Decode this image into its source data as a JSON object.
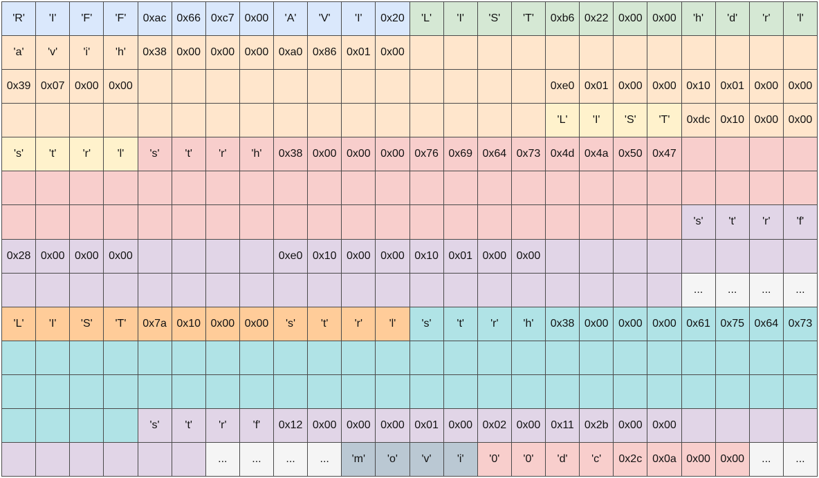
{
  "colors": {
    "b": "#dae8fc",
    "g": "#d5e8d4",
    "o": "#ffe6cc",
    "y": "#fff2cc",
    "r": "#f8cecc",
    "p": "#e1d5e7",
    "w": "#f5f5f5",
    "d": "#ffcc99",
    "t": "#b0e3e6",
    "s": "#bac8d3"
  },
  "rows": [
    {
      "fills": [
        "b",
        "b",
        "b",
        "b",
        "b",
        "b",
        "b",
        "b",
        "b",
        "b",
        "b",
        "b",
        "g",
        "g",
        "g",
        "g",
        "g",
        "g",
        "g",
        "g",
        "g",
        "g",
        "g",
        "g"
      ],
      "values": [
        "'R'",
        "'I'",
        "'F'",
        "'F'",
        "0xac",
        "0x66",
        "0xc7",
        "0x00",
        "'A'",
        "'V'",
        "'I'",
        "0x20",
        "'L'",
        "'I'",
        "'S'",
        "'T'",
        "0xb6",
        "0x22",
        "0x00",
        "0x00",
        "'h'",
        "'d'",
        "'r'",
        "'l'"
      ]
    },
    {
      "fills": [
        "o",
        "o",
        "o",
        "o",
        "o",
        "o",
        "o",
        "o",
        "o",
        "o",
        "o",
        "o",
        "o",
        "o",
        "o",
        "o",
        "o",
        "o",
        "o",
        "o",
        "o",
        "o",
        "o",
        "o"
      ],
      "values": [
        "'a'",
        "'v'",
        "'i'",
        "'h'",
        "0x38",
        "0x00",
        "0x00",
        "0x00",
        "0xa0",
        "0x86",
        "0x01",
        "0x00",
        "",
        "",
        "",
        "",
        "",
        "",
        "",
        "",
        "",
        "",
        "",
        ""
      ]
    },
    {
      "fills": [
        "o",
        "o",
        "o",
        "o",
        "o",
        "o",
        "o",
        "o",
        "o",
        "o",
        "o",
        "o",
        "o",
        "o",
        "o",
        "o",
        "o",
        "o",
        "o",
        "o",
        "o",
        "o",
        "o",
        "o"
      ],
      "values": [
        "0x39",
        "0x07",
        "0x00",
        "0x00",
        "",
        "",
        "",
        "",
        "",
        "",
        "",
        "",
        "",
        "",
        "",
        "",
        "0xe0",
        "0x01",
        "0x00",
        "0x00",
        "0x10",
        "0x01",
        "0x00",
        "0x00"
      ]
    },
    {
      "fills": [
        "o",
        "o",
        "o",
        "o",
        "o",
        "o",
        "o",
        "o",
        "o",
        "o",
        "o",
        "o",
        "o",
        "o",
        "o",
        "o",
        "y",
        "y",
        "y",
        "y",
        "o",
        "o",
        "o",
        "o"
      ],
      "values": [
        "",
        "",
        "",
        "",
        "",
        "",
        "",
        "",
        "",
        "",
        "",
        "",
        "",
        "",
        "",
        "",
        "'L'",
        "'I'",
        "'S'",
        "'T'",
        "0xdc",
        "0x10",
        "0x00",
        "0x00"
      ]
    },
    {
      "fills": [
        "y",
        "y",
        "y",
        "y",
        "r",
        "r",
        "r",
        "r",
        "r",
        "r",
        "r",
        "r",
        "r",
        "r",
        "r",
        "r",
        "r",
        "r",
        "r",
        "r",
        "r",
        "r",
        "r",
        "r"
      ],
      "values": [
        "'s'",
        "'t'",
        "'r'",
        "'l'",
        "'s'",
        "'t'",
        "'r'",
        "'h'",
        "0x38",
        "0x00",
        "0x00",
        "0x00",
        "0x76",
        "0x69",
        "0x64",
        "0x73",
        "0x4d",
        "0x4a",
        "0x50",
        "0x47",
        "",
        "",
        "",
        ""
      ]
    },
    {
      "fills": [
        "r",
        "r",
        "r",
        "r",
        "r",
        "r",
        "r",
        "r",
        "r",
        "r",
        "r",
        "r",
        "r",
        "r",
        "r",
        "r",
        "r",
        "r",
        "r",
        "r",
        "r",
        "r",
        "r",
        "r"
      ],
      "values": [
        "",
        "",
        "",
        "",
        "",
        "",
        "",
        "",
        "",
        "",
        "",
        "",
        "",
        "",
        "",
        "",
        "",
        "",
        "",
        "",
        "",
        "",
        "",
        ""
      ]
    },
    {
      "fills": [
        "r",
        "r",
        "r",
        "r",
        "r",
        "r",
        "r",
        "r",
        "r",
        "r",
        "r",
        "r",
        "r",
        "r",
        "r",
        "r",
        "r",
        "r",
        "r",
        "r",
        "p",
        "p",
        "p",
        "p"
      ],
      "values": [
        "",
        "",
        "",
        "",
        "",
        "",
        "",
        "",
        "",
        "",
        "",
        "",
        "",
        "",
        "",
        "",
        "",
        "",
        "",
        "",
        "'s'",
        "'t'",
        "'r'",
        "'f'"
      ]
    },
    {
      "fills": [
        "p",
        "p",
        "p",
        "p",
        "p",
        "p",
        "p",
        "p",
        "p",
        "p",
        "p",
        "p",
        "p",
        "p",
        "p",
        "p",
        "p",
        "p",
        "p",
        "p",
        "p",
        "p",
        "p",
        "p"
      ],
      "values": [
        "0x28",
        "0x00",
        "0x00",
        "0x00",
        "",
        "",
        "",
        "",
        "0xe0",
        "0x10",
        "0x00",
        "0x00",
        "0x10",
        "0x01",
        "0x00",
        "0x00",
        "",
        "",
        "",
        "",
        "",
        "",
        "",
        ""
      ]
    },
    {
      "fills": [
        "p",
        "p",
        "p",
        "p",
        "p",
        "p",
        "p",
        "p",
        "p",
        "p",
        "p",
        "p",
        "p",
        "p",
        "p",
        "p",
        "p",
        "p",
        "p",
        "p",
        "w",
        "w",
        "w",
        "w"
      ],
      "values": [
        "",
        "",
        "",
        "",
        "",
        "",
        "",
        "",
        "",
        "",
        "",
        "",
        "",
        "",
        "",
        "",
        "",
        "",
        "",
        "",
        "...",
        "...",
        "...",
        "..."
      ]
    },
    {
      "fills": [
        "d",
        "d",
        "d",
        "d",
        "d",
        "d",
        "d",
        "d",
        "d",
        "d",
        "d",
        "d",
        "t",
        "t",
        "t",
        "t",
        "t",
        "t",
        "t",
        "t",
        "t",
        "t",
        "t",
        "t"
      ],
      "values": [
        "'L'",
        "'I'",
        "'S'",
        "'T'",
        "0x7a",
        "0x10",
        "0x00",
        "0x00",
        "'s'",
        "'t'",
        "'r'",
        "'l'",
        "'s'",
        "'t'",
        "'r'",
        "'h'",
        "0x38",
        "0x00",
        "0x00",
        "0x00",
        "0x61",
        "0x75",
        "0x64",
        "0x73"
      ]
    },
    {
      "fills": [
        "t",
        "t",
        "t",
        "t",
        "t",
        "t",
        "t",
        "t",
        "t",
        "t",
        "t",
        "t",
        "t",
        "t",
        "t",
        "t",
        "t",
        "t",
        "t",
        "t",
        "t",
        "t",
        "t",
        "t"
      ],
      "values": [
        "",
        "",
        "",
        "",
        "",
        "",
        "",
        "",
        "",
        "",
        "",
        "",
        "",
        "",
        "",
        "",
        "",
        "",
        "",
        "",
        "",
        "",
        "",
        ""
      ]
    },
    {
      "fills": [
        "t",
        "t",
        "t",
        "t",
        "t",
        "t",
        "t",
        "t",
        "t",
        "t",
        "t",
        "t",
        "t",
        "t",
        "t",
        "t",
        "t",
        "t",
        "t",
        "t",
        "t",
        "t",
        "t",
        "t"
      ],
      "values": [
        "",
        "",
        "",
        "",
        "",
        "",
        "",
        "",
        "",
        "",
        "",
        "",
        "",
        "",
        "",
        "",
        "",
        "",
        "",
        "",
        "",
        "",
        "",
        ""
      ]
    },
    {
      "fills": [
        "t",
        "t",
        "t",
        "t",
        "p",
        "p",
        "p",
        "p",
        "p",
        "p",
        "p",
        "p",
        "p",
        "p",
        "p",
        "p",
        "p",
        "p",
        "p",
        "p",
        "p",
        "p",
        "p",
        "p"
      ],
      "values": [
        "",
        "",
        "",
        "",
        "'s'",
        "'t'",
        "'r'",
        "'f'",
        "0x12",
        "0x00",
        "0x00",
        "0x00",
        "0x01",
        "0x00",
        "0x02",
        "0x00",
        "0x11",
        "0x2b",
        "0x00",
        "0x00",
        "",
        "",
        "",
        ""
      ]
    },
    {
      "fills": [
        "p",
        "p",
        "p",
        "p",
        "p",
        "p",
        "w",
        "w",
        "w",
        "w",
        "s",
        "s",
        "s",
        "s",
        "r",
        "r",
        "r",
        "r",
        "r",
        "r",
        "r",
        "r",
        "w",
        "w"
      ],
      "values": [
        "",
        "",
        "",
        "",
        "",
        "",
        "...",
        "...",
        "...",
        "...",
        "'m'",
        "'o'",
        "'v'",
        "'i'",
        "'0'",
        "'0'",
        "'d'",
        "'c'",
        "0x2c",
        "0x0a",
        "0x00",
        "0x00",
        "...",
        "..."
      ]
    }
  ]
}
